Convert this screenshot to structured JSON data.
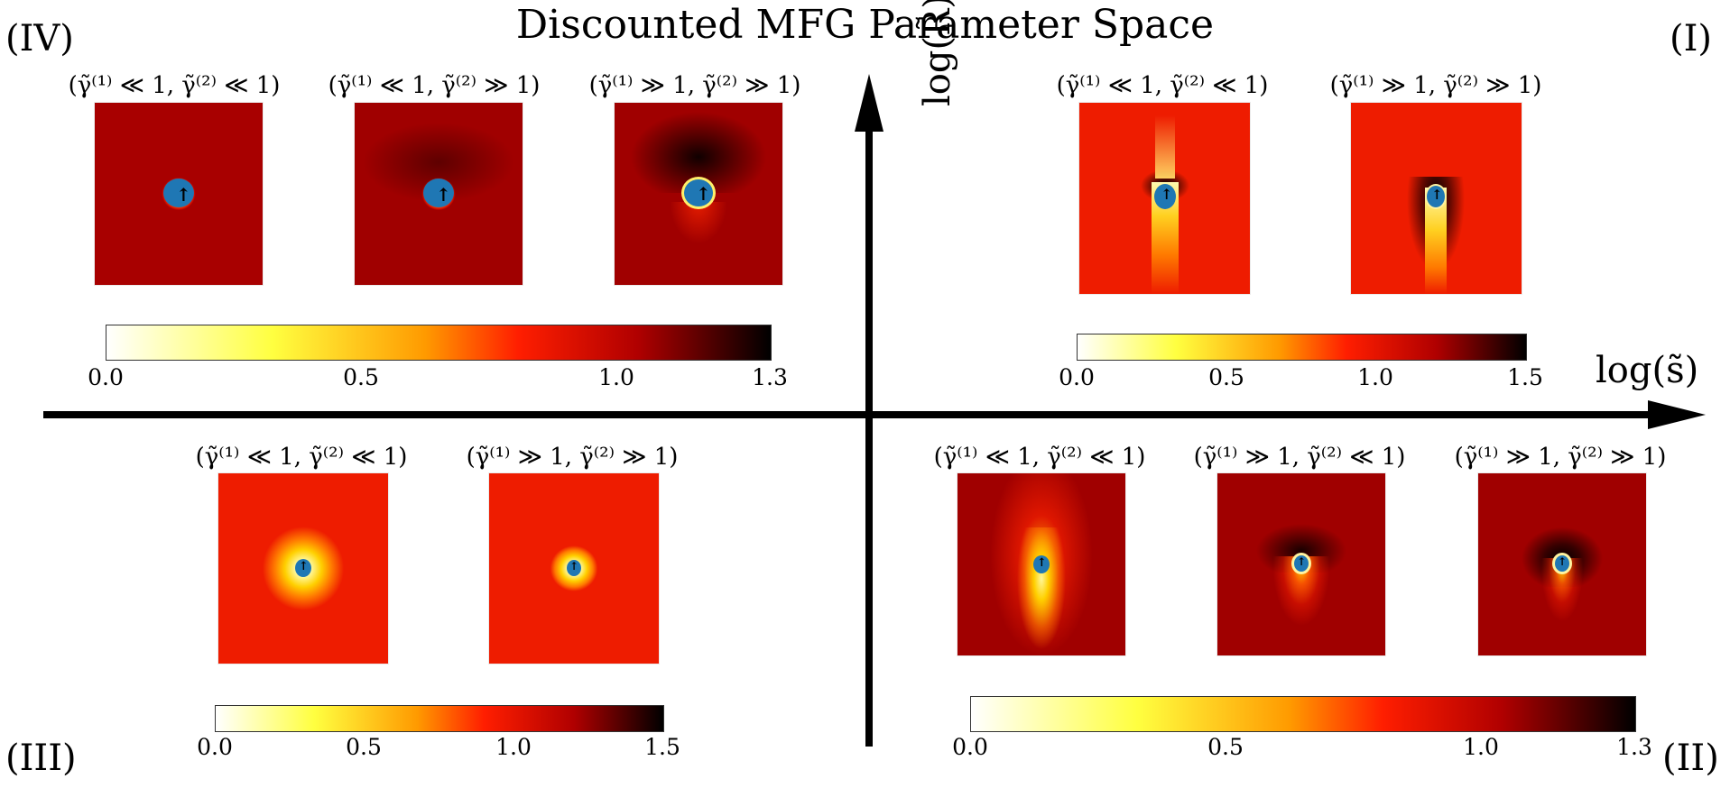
{
  "title": "Discounted MFG Parameter Space",
  "quadrants": {
    "I": "(I)",
    "II": "(II)",
    "III": "(III)",
    "IV": "(IV)"
  },
  "axes": {
    "x_label": "log(s̃)",
    "y_label": "log(R̃)"
  },
  "panels": {
    "IV": [
      {
        "label": "(γ̃⁽¹⁾ ≪ 1, γ̃⁽²⁾ ≪ 1)",
        "variant": "soft-ring"
      },
      {
        "label": "(γ̃⁽¹⁾ ≪ 1, γ̃⁽²⁾ ≫ 1)",
        "variant": "soft-shadow"
      },
      {
        "label": "(γ̃⁽¹⁾ ≫ 1, γ̃⁽²⁾ ≫ 1)",
        "variant": "dark-top"
      }
    ],
    "I": [
      {
        "label": "(γ̃⁽¹⁾ ≪ 1, γ̃⁽²⁾ ≪ 1)",
        "variant": "streak"
      },
      {
        "label": "(γ̃⁽¹⁾ ≫ 1, γ̃⁽²⁾ ≫ 1)",
        "variant": "arch-streak"
      }
    ],
    "III": [
      {
        "label": "(γ̃⁽¹⁾ ≪ 1, γ̃⁽²⁾ ≪ 1)",
        "variant": "wide-glow"
      },
      {
        "label": "(γ̃⁽¹⁾ ≫ 1, γ̃⁽²⁾ ≫ 1)",
        "variant": "small-glow"
      }
    ],
    "II": [
      {
        "label": "(γ̃⁽¹⁾ ≪ 1, γ̃⁽²⁾ ≪ 1)",
        "variant": "cone"
      },
      {
        "label": "(γ̃⁽¹⁾ ≫ 1, γ̃⁽²⁾ ≪ 1)",
        "variant": "cone-dark"
      },
      {
        "label": "(γ̃⁽¹⁾ ≫ 1, γ̃⁽²⁾ ≫ 1)",
        "variant": "cone-arch"
      }
    ]
  },
  "colorbars": {
    "IV": {
      "ticks": [
        "0.0",
        "0.5",
        "1.0",
        "1.3"
      ],
      "max": 1.3
    },
    "I": {
      "ticks": [
        "0.0",
        "0.5",
        "1.0",
        "1.5"
      ],
      "max": 1.5
    },
    "III": {
      "ticks": [
        "0.0",
        "0.5",
        "1.0",
        "1.5"
      ],
      "max": 1.5
    },
    "II": {
      "ticks": [
        "0.0",
        "0.5",
        "1.0",
        "1.3"
      ],
      "max": 1.3
    }
  },
  "colors": {
    "agent": "#1f77b4",
    "axis": "#000000"
  }
}
